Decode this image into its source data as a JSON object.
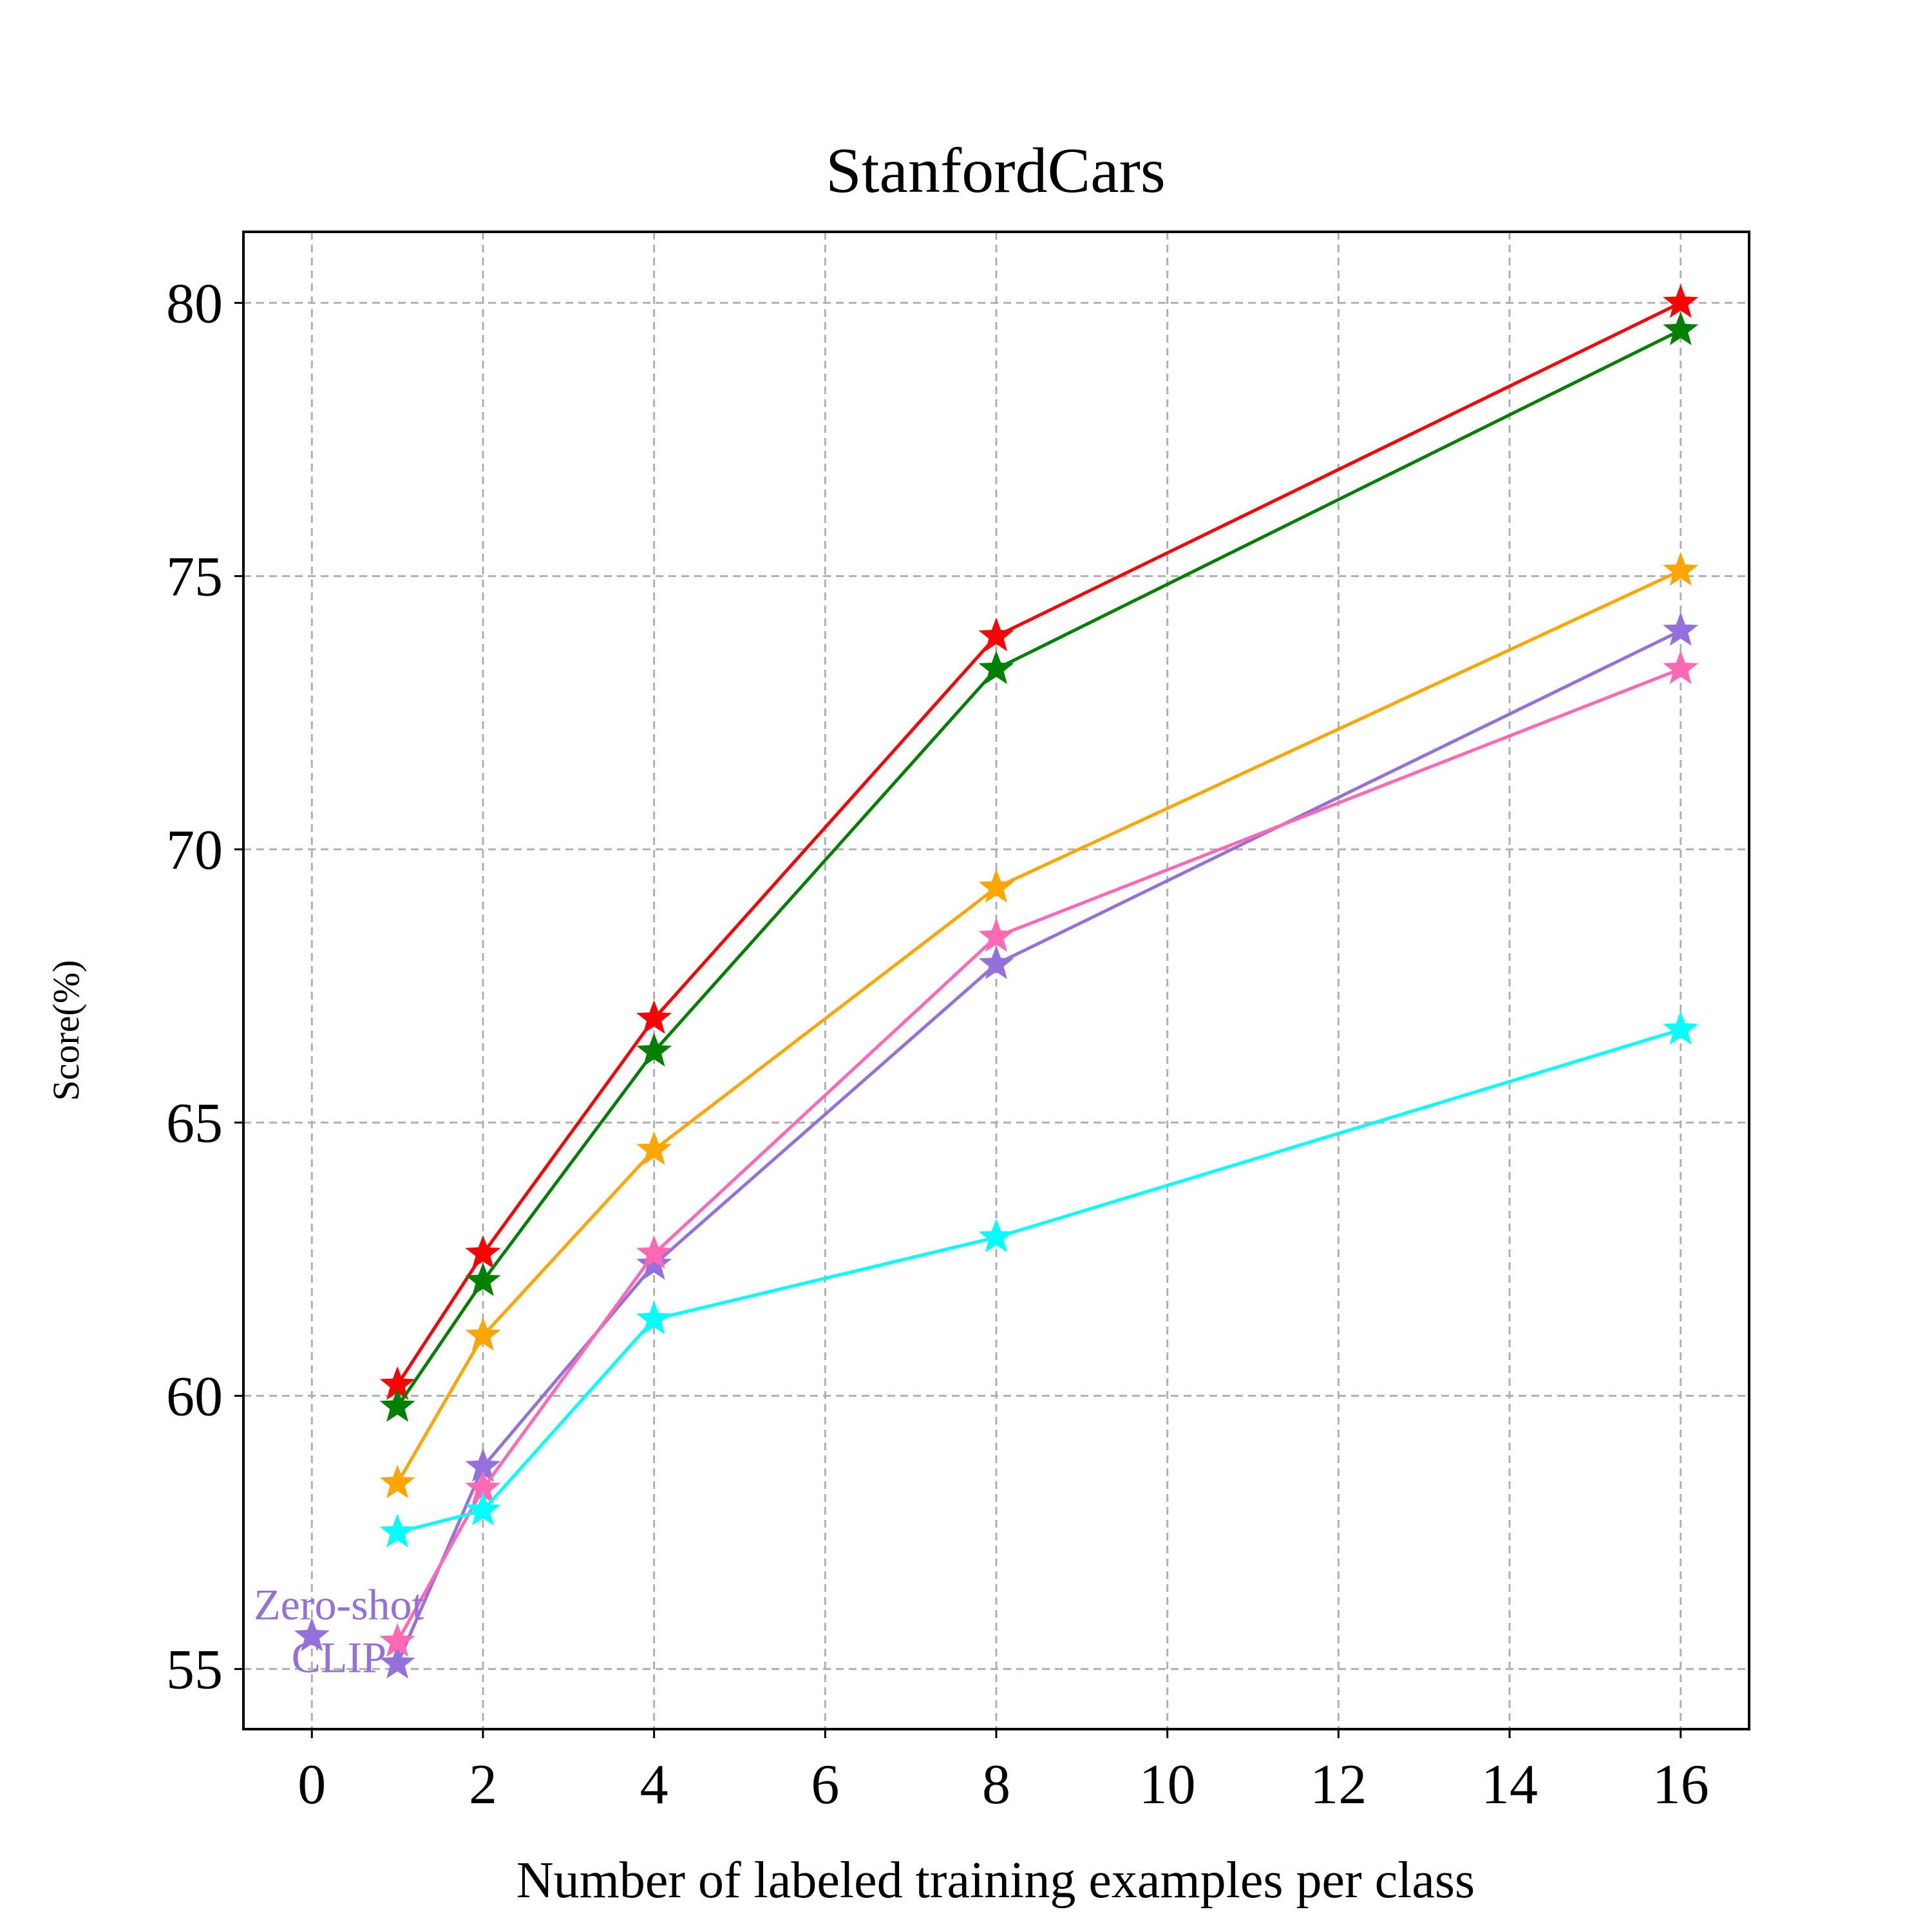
{
  "chart_data": {
    "type": "line",
    "title": "StanfordCars",
    "xlabel": "Number of labeled training examples per class",
    "ylabel": "Score(%)",
    "xlim": [
      -0.8,
      16.8
    ],
    "ylim": [
      53.9,
      81.3
    ],
    "xticks": [
      "0",
      "2",
      "4",
      "6",
      "8",
      "10",
      "12",
      "14",
      "16"
    ],
    "yticks": [
      "55",
      "60",
      "65",
      "70",
      "75",
      "80"
    ],
    "grid": true,
    "x": [
      1,
      2,
      4,
      8,
      16
    ],
    "series": [
      {
        "name": "red",
        "color": "#ff0000",
        "values": [
          60.2,
          62.6,
          66.9,
          73.9,
          80.0
        ]
      },
      {
        "name": "green",
        "color": "#008000",
        "values": [
          59.8,
          62.1,
          66.3,
          73.3,
          79.5
        ]
      },
      {
        "name": "orange",
        "color": "#ffa500",
        "values": [
          58.4,
          61.1,
          64.5,
          69.3,
          75.1
        ]
      },
      {
        "name": "purple",
        "color": "#9370db",
        "values": [
          55.1,
          58.7,
          62.4,
          67.9,
          74.0
        ]
      },
      {
        "name": "pink",
        "color": "#ff69b4",
        "values": [
          55.5,
          58.3,
          62.6,
          68.4,
          73.3
        ]
      },
      {
        "name": "cyan",
        "color": "#00ffff",
        "values": [
          57.5,
          57.9,
          61.4,
          62.9,
          66.7
        ]
      }
    ],
    "zero_shot": {
      "x": 0,
      "y": 55.6,
      "color": "#9370db",
      "label_line1": "Zero-shot",
      "label_line2": "CLIP"
    }
  }
}
